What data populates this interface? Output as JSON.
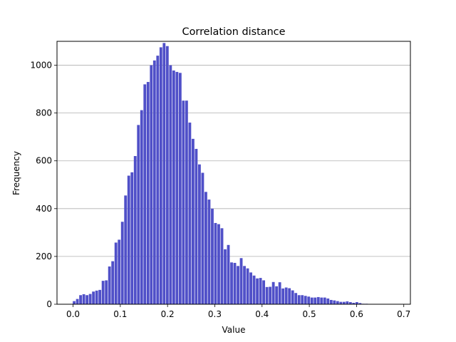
{
  "chart_data": {
    "type": "bar",
    "title": "Correlation distance",
    "xlabel": "Value",
    "ylabel": "Frequency",
    "xlim": [
      -0.034,
      0.714
    ],
    "ylim": [
      0,
      1100
    ],
    "xticks": [
      0.0,
      0.1,
      0.2,
      0.3,
      0.4,
      0.5,
      0.6,
      0.7
    ],
    "xtick_labels": [
      "0.0",
      "0.1",
      "0.2",
      "0.3",
      "0.4",
      "0.5",
      "0.6",
      "0.7"
    ],
    "yticks": [
      0,
      200,
      400,
      600,
      800,
      1000
    ],
    "ytick_labels": [
      "0",
      "200",
      "400",
      "600",
      "800",
      "1000"
    ],
    "grid": "y",
    "bar_color": "#5050c8",
    "bin_width": 0.0068,
    "bins": [
      [
        0.0023,
        13
      ],
      [
        0.0091,
        22
      ],
      [
        0.0159,
        38
      ],
      [
        0.0227,
        42
      ],
      [
        0.0295,
        38
      ],
      [
        0.0363,
        43
      ],
      [
        0.0431,
        53
      ],
      [
        0.0499,
        57
      ],
      [
        0.0567,
        60
      ],
      [
        0.0635,
        98
      ],
      [
        0.0703,
        100
      ],
      [
        0.0771,
        158
      ],
      [
        0.0839,
        180
      ],
      [
        0.0907,
        258
      ],
      [
        0.0975,
        270
      ],
      [
        0.1043,
        345
      ],
      [
        0.1111,
        455
      ],
      [
        0.1179,
        538
      ],
      [
        0.1247,
        552
      ],
      [
        0.1315,
        620
      ],
      [
        0.1383,
        750
      ],
      [
        0.1451,
        812
      ],
      [
        0.1519,
        920
      ],
      [
        0.1587,
        930
      ],
      [
        0.1655,
        1000
      ],
      [
        0.1723,
        1020
      ],
      [
        0.1791,
        1040
      ],
      [
        0.1859,
        1075
      ],
      [
        0.1927,
        1093
      ],
      [
        0.1995,
        1080
      ],
      [
        0.2063,
        1000
      ],
      [
        0.2131,
        978
      ],
      [
        0.2199,
        972
      ],
      [
        0.2267,
        968
      ],
      [
        0.2335,
        852
      ],
      [
        0.2403,
        852
      ],
      [
        0.2471,
        760
      ],
      [
        0.2539,
        692
      ],
      [
        0.2607,
        650
      ],
      [
        0.2675,
        585
      ],
      [
        0.2743,
        550
      ],
      [
        0.2811,
        470
      ],
      [
        0.2879,
        438
      ],
      [
        0.2947,
        400
      ],
      [
        0.3015,
        340
      ],
      [
        0.3083,
        335
      ],
      [
        0.3151,
        318
      ],
      [
        0.3219,
        230
      ],
      [
        0.3287,
        248
      ],
      [
        0.3355,
        175
      ],
      [
        0.3423,
        173
      ],
      [
        0.3491,
        160
      ],
      [
        0.3559,
        193
      ],
      [
        0.3627,
        160
      ],
      [
        0.3695,
        150
      ],
      [
        0.3763,
        133
      ],
      [
        0.3831,
        120
      ],
      [
        0.3899,
        108
      ],
      [
        0.3967,
        110
      ],
      [
        0.4035,
        100
      ],
      [
        0.4103,
        72
      ],
      [
        0.4171,
        73
      ],
      [
        0.4239,
        93
      ],
      [
        0.4307,
        75
      ],
      [
        0.4375,
        92
      ],
      [
        0.4443,
        66
      ],
      [
        0.4511,
        70
      ],
      [
        0.4579,
        67
      ],
      [
        0.4647,
        58
      ],
      [
        0.4715,
        47
      ],
      [
        0.4783,
        38
      ],
      [
        0.4851,
        38
      ],
      [
        0.4919,
        35
      ],
      [
        0.4987,
        32
      ],
      [
        0.5055,
        28
      ],
      [
        0.5123,
        28
      ],
      [
        0.5191,
        30
      ],
      [
        0.5259,
        28
      ],
      [
        0.5327,
        28
      ],
      [
        0.5395,
        24
      ],
      [
        0.5463,
        18
      ],
      [
        0.5531,
        16
      ],
      [
        0.5599,
        13
      ],
      [
        0.5667,
        10
      ],
      [
        0.5735,
        10
      ],
      [
        0.5803,
        12
      ],
      [
        0.5871,
        9
      ],
      [
        0.5939,
        6
      ],
      [
        0.6007,
        9
      ],
      [
        0.6075,
        5
      ],
      [
        0.6143,
        2
      ],
      [
        0.6211,
        2
      ],
      [
        0.6279,
        1
      ],
      [
        0.6347,
        1
      ],
      [
        0.6415,
        1
      ],
      [
        0.6483,
        1
      ],
      [
        0.6551,
        1
      ],
      [
        0.6619,
        1
      ],
      [
        0.6687,
        1
      ]
    ]
  }
}
